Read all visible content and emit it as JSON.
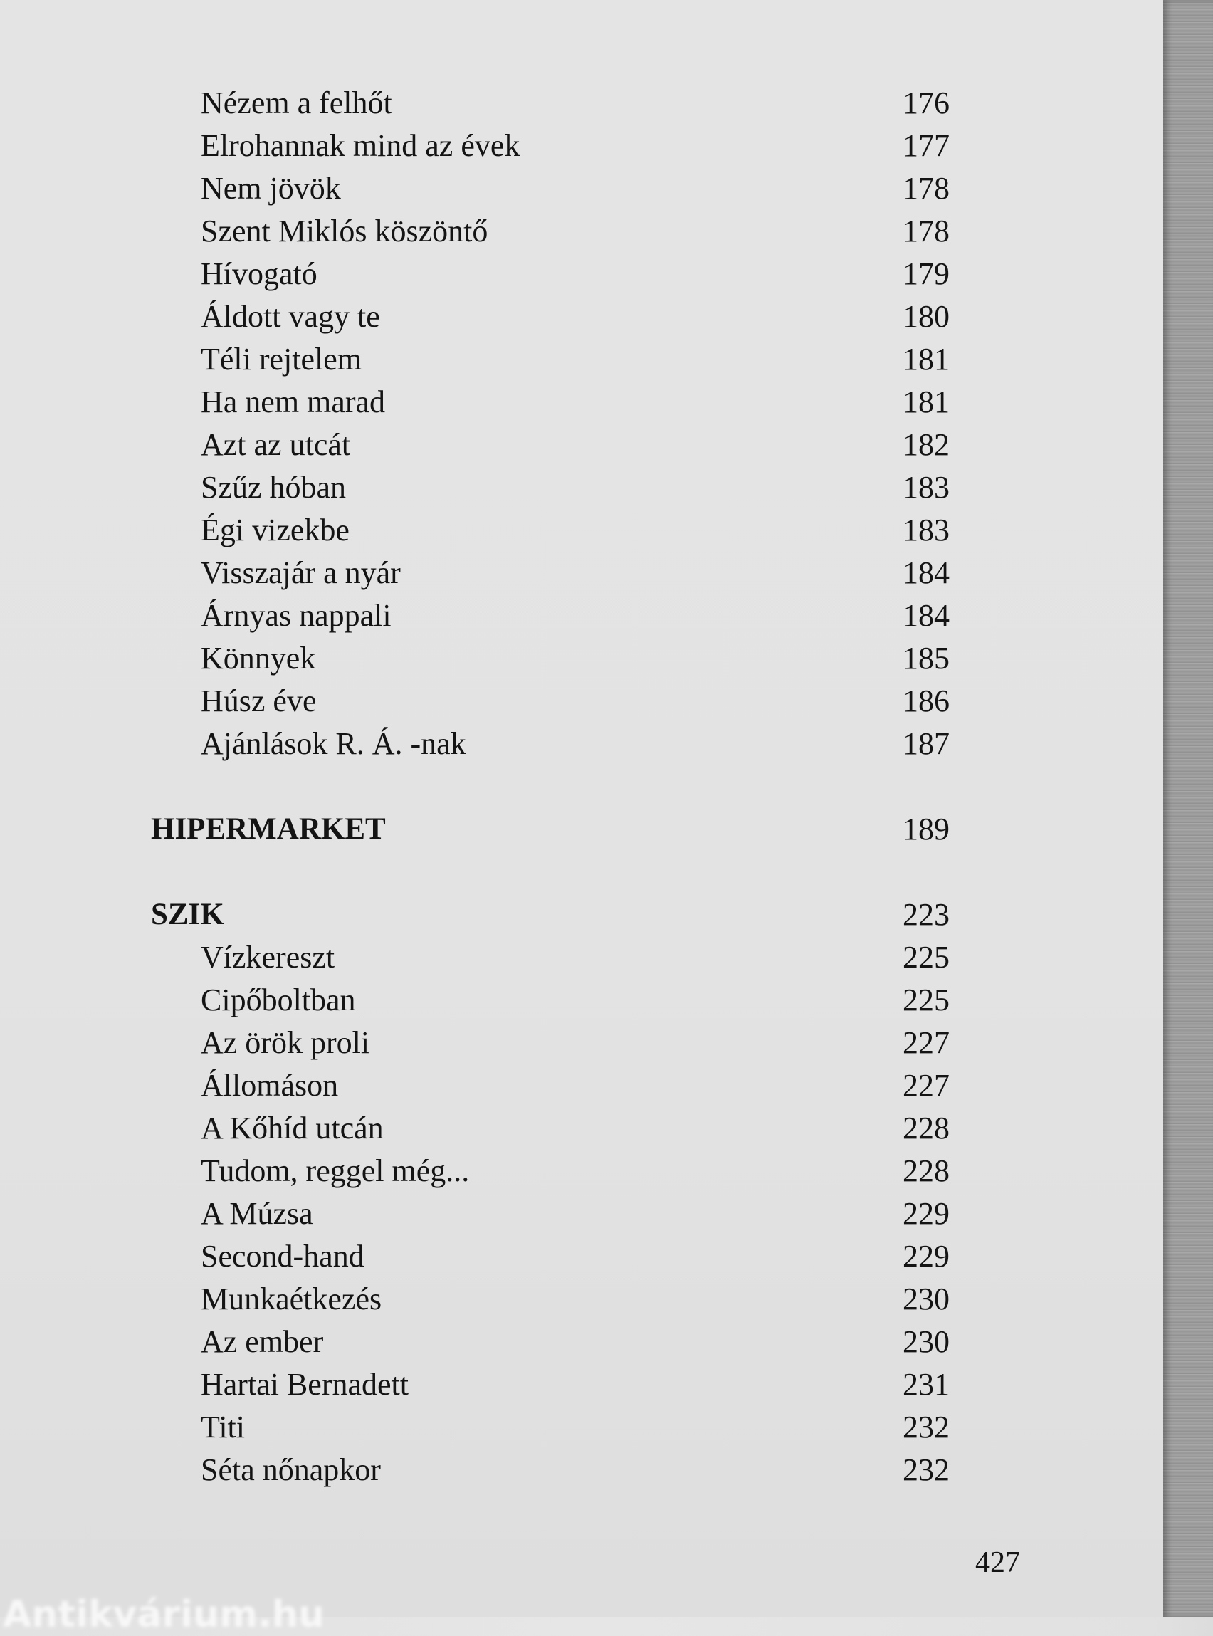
{
  "toc": [
    {
      "type": "entry",
      "title": "Nézem a felhőt",
      "page": "176"
    },
    {
      "type": "entry",
      "title": "Elrohannak mind az évek",
      "page": "177"
    },
    {
      "type": "entry",
      "title": "Nem jövök",
      "page": "178"
    },
    {
      "type": "entry",
      "title": "Szent Miklós köszöntő",
      "page": "178"
    },
    {
      "type": "entry",
      "title": "Hívogató",
      "page": "179"
    },
    {
      "type": "entry",
      "title": "Áldott vagy te",
      "page": "180"
    },
    {
      "type": "entry",
      "title": "Téli rejtelem",
      "page": "181"
    },
    {
      "type": "entry",
      "title": "Ha nem marad",
      "page": "181"
    },
    {
      "type": "entry",
      "title": "Azt az utcát",
      "page": "182"
    },
    {
      "type": "entry",
      "title": "Szűz hóban",
      "page": "183"
    },
    {
      "type": "entry",
      "title": "Égi vizekbe",
      "page": "183"
    },
    {
      "type": "entry",
      "title": "Visszajár a nyár",
      "page": "184"
    },
    {
      "type": "entry",
      "title": "Árnyas nappali",
      "page": "184"
    },
    {
      "type": "entry",
      "title": "Könnyek",
      "page": "185"
    },
    {
      "type": "entry",
      "title": "Húsz éve",
      "page": "186"
    },
    {
      "type": "entry",
      "title": "Ajánlások R. Á. -nak",
      "page": "187"
    },
    {
      "type": "section",
      "title": "HIPERMARKET",
      "page": "189"
    },
    {
      "type": "section",
      "title": "SZIK",
      "page": "223"
    },
    {
      "type": "entry",
      "title": "Vízkereszt",
      "page": "225"
    },
    {
      "type": "entry",
      "title": "Cipőboltban",
      "page": "225"
    },
    {
      "type": "entry",
      "title": "Az örök proli",
      "page": "227"
    },
    {
      "type": "entry",
      "title": "Állomáson",
      "page": "227"
    },
    {
      "type": "entry",
      "title": "A Kőhíd utcán",
      "page": "228"
    },
    {
      "type": "entry",
      "title": "Tudom, reggel még...",
      "page": "228"
    },
    {
      "type": "entry",
      "title": "A Múzsa",
      "page": "229"
    },
    {
      "type": "entry",
      "title": "Second-hand",
      "page": "229"
    },
    {
      "type": "entry",
      "title": "Munkaétkezés",
      "page": "230"
    },
    {
      "type": "entry",
      "title": "Az ember",
      "page": "230"
    },
    {
      "type": "entry",
      "title": "Hartai Bernadett",
      "page": "231"
    },
    {
      "type": "entry",
      "title": "Titi",
      "page": "232"
    },
    {
      "type": "entry",
      "title": "Séta nőnapkor",
      "page": "232"
    }
  ],
  "folio": "427",
  "watermark": "Antikvárium.hu"
}
